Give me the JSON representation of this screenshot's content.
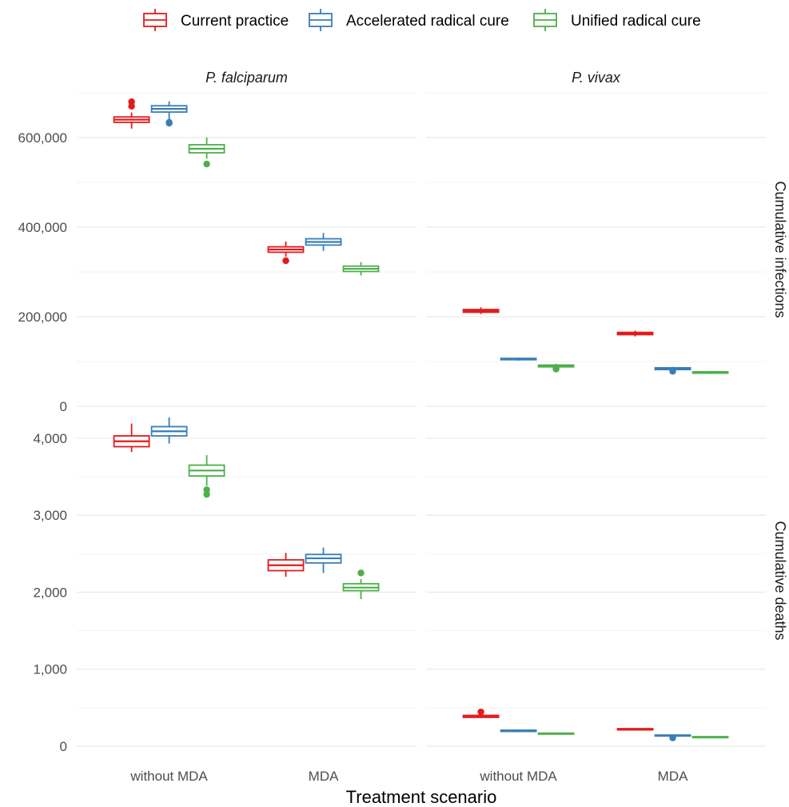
{
  "chart_data": {
    "type": "boxplot",
    "xlabel": "Treatment scenario",
    "categories": [
      "without MDA",
      "MDA"
    ],
    "legend": {
      "placement": "top",
      "entries": [
        {
          "name": "Current practice",
          "color": "#E41A1C"
        },
        {
          "name": "Accelerated radical cure",
          "color": "#377EB8"
        },
        {
          "name": "Unified radical cure",
          "color": "#4DAF4A"
        }
      ]
    },
    "facet_cols": [
      "P. falciparum",
      "P. vivax"
    ],
    "facet_rows": [
      {
        "label": "Cumulative infections",
        "ylim": [
          0,
          700000
        ],
        "yticks": [
          0,
          200000,
          400000,
          600000
        ],
        "ytick_labels": [
          "0",
          "200,000",
          "400,000",
          "600,000"
        ],
        "minor_ticks": [
          100000,
          300000,
          500000,
          700000
        ]
      },
      {
        "label": "Cumulative deaths",
        "ylim": [
          0,
          4300
        ],
        "yticks": [
          0,
          1000,
          2000,
          3000,
          4000
        ],
        "ytick_labels": [
          "0",
          "1,000",
          "2,000",
          "3,000",
          "4,000"
        ],
        "minor_ticks": [
          500,
          1500,
          2500,
          3500
        ]
      }
    ],
    "panels": [
      {
        "row": 0,
        "col": 0,
        "boxes": [
          {
            "category": 0,
            "series": 0,
            "min": 620000,
            "q1": 634000,
            "median": 640000,
            "q3": 646000,
            "max": 656000,
            "outliers": [
              680000,
              670000
            ]
          },
          {
            "category": 0,
            "series": 1,
            "min": 640000,
            "q1": 657000,
            "median": 664000,
            "q3": 671000,
            "max": 681000,
            "outliers": [
              634000,
              632000
            ]
          },
          {
            "category": 0,
            "series": 2,
            "min": 553000,
            "q1": 566000,
            "median": 575000,
            "q3": 584000,
            "max": 600000,
            "outliers": [
              541000
            ]
          },
          {
            "category": 1,
            "series": 0,
            "min": 334000,
            "q1": 344000,
            "median": 350000,
            "q3": 356000,
            "max": 368000,
            "outliers": [
              325000
            ]
          },
          {
            "category": 1,
            "series": 1,
            "min": 347000,
            "q1": 360000,
            "median": 367000,
            "q3": 374000,
            "max": 387000,
            "outliers": []
          },
          {
            "category": 1,
            "series": 2,
            "min": 292000,
            "q1": 301000,
            "median": 307000,
            "q3": 313000,
            "max": 322000,
            "outliers": []
          }
        ]
      },
      {
        "row": 0,
        "col": 1,
        "boxes": [
          {
            "category": 0,
            "series": 0,
            "min": 206000,
            "q1": 210000,
            "median": 213000,
            "q3": 216000,
            "max": 221000,
            "outliers": []
          },
          {
            "category": 0,
            "series": 1,
            "min": 102000,
            "q1": 104000,
            "median": 105000,
            "q3": 107000,
            "max": 109000,
            "outliers": []
          },
          {
            "category": 0,
            "series": 2,
            "min": 85000,
            "q1": 88000,
            "median": 90000,
            "q3": 92000,
            "max": 95000,
            "outliers": [
              84000,
              83000
            ]
          },
          {
            "category": 1,
            "series": 0,
            "min": 156000,
            "q1": 160000,
            "median": 162000,
            "q3": 165000,
            "max": 169000,
            "outliers": []
          },
          {
            "category": 1,
            "series": 1,
            "min": 80000,
            "q1": 82000,
            "median": 84000,
            "q3": 86000,
            "max": 88000,
            "outliers": [
              78000
            ]
          },
          {
            "category": 1,
            "series": 2,
            "min": 72000,
            "q1": 74000,
            "median": 75000,
            "q3": 77000,
            "max": 79000,
            "outliers": []
          }
        ]
      },
      {
        "row": 1,
        "col": 0,
        "boxes": [
          {
            "category": 0,
            "series": 0,
            "min": 3820.0,
            "q1": 3890,
            "median": 3960,
            "q3": 4030,
            "max": 4190,
            "outliers": []
          },
          {
            "category": 0,
            "series": 1,
            "min": 3930,
            "q1": 4030,
            "median": 4090,
            "q3": 4150,
            "max": 4270,
            "outliers": []
          },
          {
            "category": 0,
            "series": 2,
            "min": 3380,
            "q1": 3510,
            "median": 3580,
            "q3": 3650,
            "max": 3780,
            "outliers": [
              3330,
              3270
            ]
          },
          {
            "category": 1,
            "series": 0,
            "min": 2200,
            "q1": 2280,
            "median": 2350,
            "q3": 2420,
            "max": 2510,
            "outliers": []
          },
          {
            "category": 1,
            "series": 1,
            "min": 2250,
            "q1": 2380,
            "median": 2440,
            "q3": 2490,
            "max": 2580,
            "outliers": []
          },
          {
            "category": 1,
            "series": 2,
            "min": 1910,
            "q1": 2020,
            "median": 2060,
            "q3": 2110,
            "max": 2170,
            "outliers": [
              2250
            ]
          }
        ]
      },
      {
        "row": 1,
        "col": 1,
        "boxes": [
          {
            "category": 0,
            "series": 0,
            "min": 365,
            "q1": 375,
            "median": 385,
            "q3": 400,
            "max": 420,
            "outliers": [
              445
            ]
          },
          {
            "category": 0,
            "series": 1,
            "min": 185,
            "q1": 192,
            "median": 200,
            "q3": 208,
            "max": 216,
            "outliers": []
          },
          {
            "category": 0,
            "series": 2,
            "min": 150,
            "q1": 157,
            "median": 163,
            "q3": 170,
            "max": 178,
            "outliers": []
          },
          {
            "category": 1,
            "series": 0,
            "min": 205,
            "q1": 212,
            "median": 220,
            "q3": 228,
            "max": 236,
            "outliers": []
          },
          {
            "category": 1,
            "series": 1,
            "min": 125,
            "q1": 132,
            "median": 138,
            "q3": 145,
            "max": 152,
            "outliers": [
              108
            ]
          },
          {
            "category": 1,
            "series": 2,
            "min": 108,
            "q1": 114,
            "median": 119,
            "q3": 124,
            "max": 130,
            "outliers": []
          }
        ]
      }
    ]
  }
}
